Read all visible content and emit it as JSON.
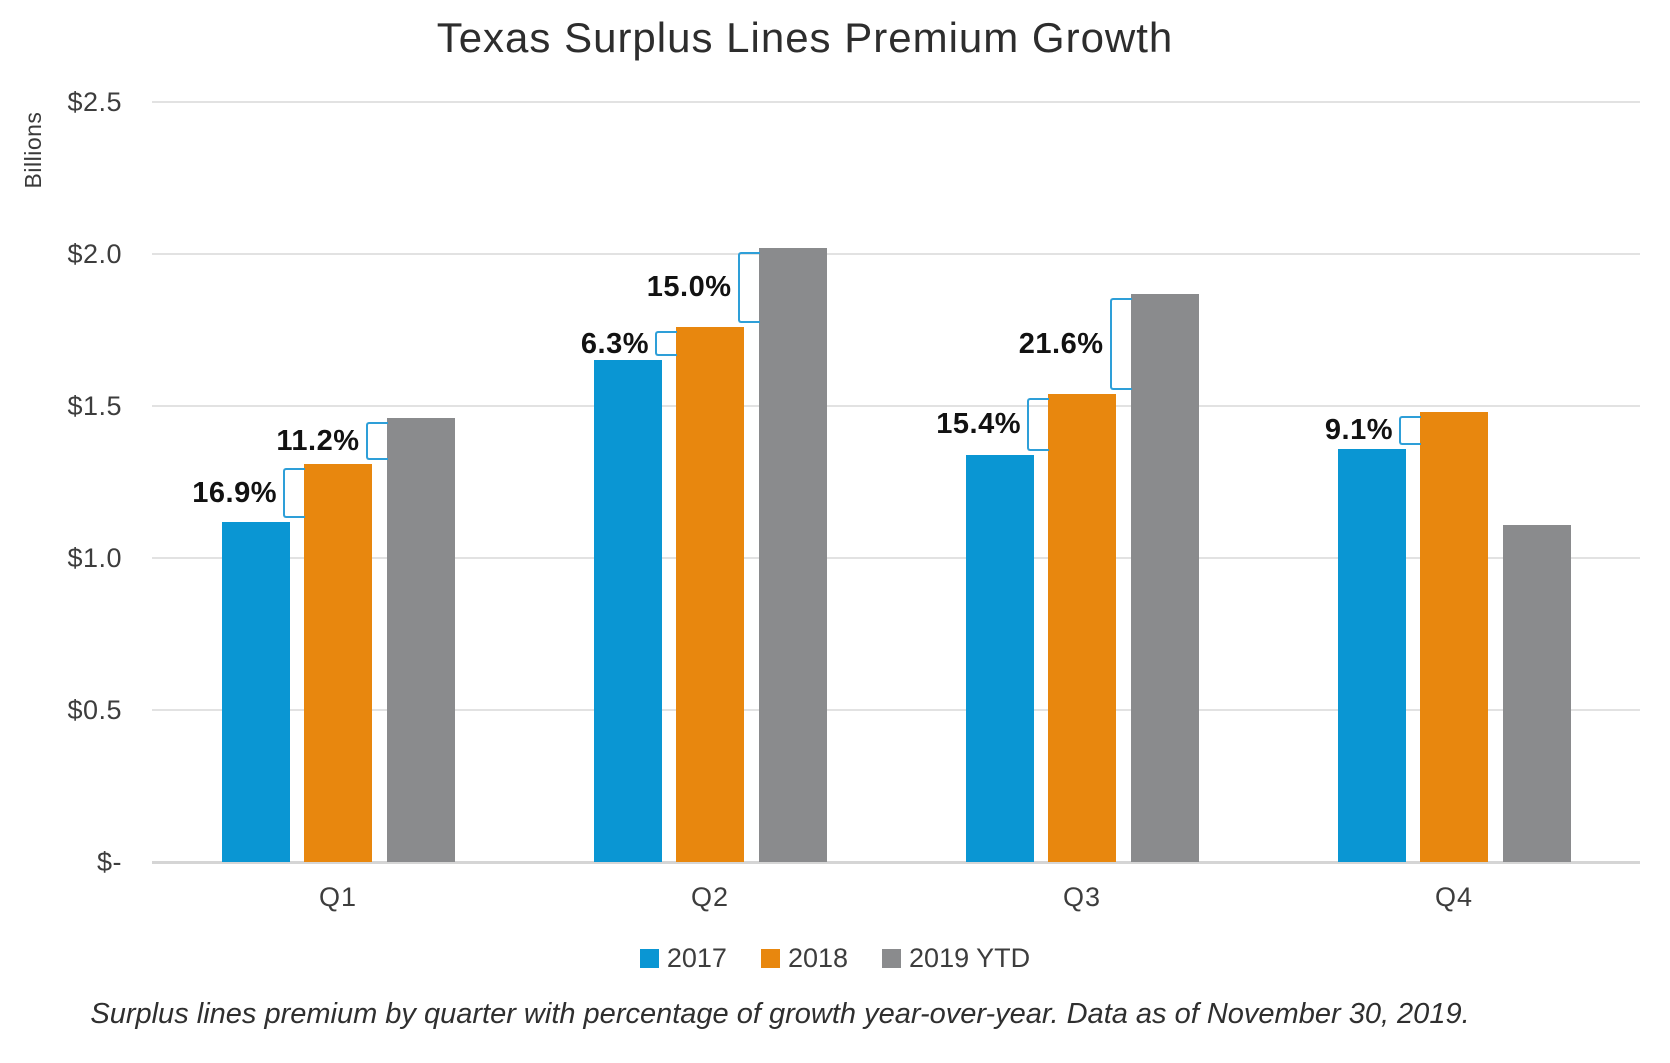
{
  "chart_data": {
    "type": "bar",
    "title": "Texas Surplus Lines Premium Growth",
    "ylabel": "Billions",
    "caption": "Surplus lines premium by quarter with percentage of growth year-over-year. Data as of November 30, 2019.",
    "categories": [
      "Q1",
      "Q2",
      "Q3",
      "Q4"
    ],
    "series": [
      {
        "name": "2017",
        "color": "#0a96d3",
        "values": [
          1.12,
          1.65,
          1.34,
          1.36
        ]
      },
      {
        "name": "2018",
        "color": "#e8870e",
        "values": [
          1.31,
          1.76,
          1.54,
          1.48
        ]
      },
      {
        "name": "2019 YTD",
        "color": "#8a8b8d",
        "values": [
          1.46,
          2.02,
          1.87,
          1.11
        ]
      }
    ],
    "y_ticks": [
      {
        "value": 2.5,
        "label": "$2.5"
      },
      {
        "value": 2.0,
        "label": "$2.0"
      },
      {
        "value": 1.5,
        "label": "$1.5"
      },
      {
        "value": 1.0,
        "label": "$1.0"
      },
      {
        "value": 0.5,
        "label": "$0.5"
      },
      {
        "value": 0.0,
        "label": "$-"
      }
    ],
    "ylim": [
      0,
      2.5
    ],
    "grid": true,
    "legend_position": "bottom",
    "growth_labels": [
      {
        "category": "Q1",
        "from": "2017",
        "to": "2018",
        "label": "16.9%"
      },
      {
        "category": "Q1",
        "from": "2018",
        "to": "2019 YTD",
        "label": "11.2%"
      },
      {
        "category": "Q2",
        "from": "2017",
        "to": "2018",
        "label": "6.3%"
      },
      {
        "category": "Q2",
        "from": "2018",
        "to": "2019 YTD",
        "label": "15.0%"
      },
      {
        "category": "Q3",
        "from": "2017",
        "to": "2018",
        "label": "15.4%"
      },
      {
        "category": "Q3",
        "from": "2018",
        "to": "2019 YTD",
        "label": "21.6%"
      },
      {
        "category": "Q4",
        "from": "2017",
        "to": "2018",
        "label": "9.1%"
      }
    ],
    "colors": {
      "bracket": "#2e9fd8",
      "grid": "#e2e2e2",
      "axis": "#d5d5d5"
    }
  }
}
